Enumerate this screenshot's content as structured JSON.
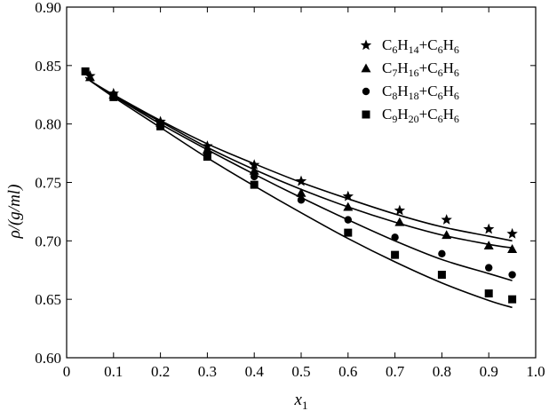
{
  "chart_data": {
    "type": "scatter",
    "title": "",
    "xlabel": "x",
    "xlabel_sub": "1",
    "ylabel": "ρ/(g/ml)",
    "xlim": [
      0,
      1.0
    ],
    "ylim": [
      0.6,
      0.9
    ],
    "x_ticks": [
      0,
      0.1,
      0.2,
      0.3,
      0.4,
      0.5,
      0.6,
      0.7,
      0.8,
      0.9,
      1.0
    ],
    "x_tick_labels": [
      "0",
      "0.1",
      "0.2",
      "0.3",
      "0.4",
      "0.5",
      "0.6",
      "0.7",
      "0.8",
      "0.9",
      "1.0"
    ],
    "y_ticks": [
      0.6,
      0.65,
      0.7,
      0.75,
      0.8,
      0.85,
      0.9
    ],
    "y_tick_labels": [
      "0.60",
      "0.65",
      "0.70",
      "0.75",
      "0.80",
      "0.85",
      "0.90"
    ],
    "grid": false,
    "legend_position": "top-right",
    "series": [
      {
        "name": "C6H14+C6H6",
        "marker": "star",
        "name_parts": [
          [
            "C",
            ""
          ],
          [
            "6",
            "sub"
          ],
          [
            "H",
            ""
          ],
          [
            "14",
            "sub"
          ],
          [
            "+C",
            ""
          ],
          [
            "6",
            "sub"
          ],
          [
            "H",
            ""
          ],
          [
            "6",
            "sub"
          ]
        ],
        "x": [
          0.05,
          0.1,
          0.2,
          0.3,
          0.4,
          0.5,
          0.6,
          0.71,
          0.81,
          0.9,
          0.95
        ],
        "y": [
          0.841,
          0.826,
          0.802,
          0.781,
          0.765,
          0.751,
          0.738,
          0.726,
          0.718,
          0.71,
          0.706
        ],
        "fit": [
          [
            0.05,
            0.837
          ],
          [
            0.1,
            0.825
          ],
          [
            0.2,
            0.803
          ],
          [
            0.3,
            0.783
          ],
          [
            0.4,
            0.766
          ],
          [
            0.5,
            0.75
          ],
          [
            0.6,
            0.736
          ],
          [
            0.7,
            0.723
          ],
          [
            0.8,
            0.712
          ],
          [
            0.9,
            0.704
          ],
          [
            0.95,
            0.7
          ]
        ]
      },
      {
        "name": "C7H16+C6H6",
        "marker": "triangle",
        "name_parts": [
          [
            "C",
            ""
          ],
          [
            "7",
            "sub"
          ],
          [
            "H",
            ""
          ],
          [
            "16",
            "sub"
          ],
          [
            "+C",
            ""
          ],
          [
            "6",
            "sub"
          ],
          [
            "H",
            ""
          ],
          [
            "6",
            "sub"
          ]
        ],
        "x": [
          0.05,
          0.1,
          0.2,
          0.3,
          0.4,
          0.5,
          0.6,
          0.71,
          0.81,
          0.9,
          0.95
        ],
        "y": [
          0.84,
          0.825,
          0.801,
          0.778,
          0.76,
          0.741,
          0.729,
          0.716,
          0.705,
          0.696,
          0.693
        ],
        "fit": [
          [
            0.05,
            0.837
          ],
          [
            0.1,
            0.824
          ],
          [
            0.2,
            0.802
          ],
          [
            0.3,
            0.78
          ],
          [
            0.4,
            0.761
          ],
          [
            0.5,
            0.744
          ],
          [
            0.6,
            0.729
          ],
          [
            0.7,
            0.716
          ],
          [
            0.8,
            0.705
          ],
          [
            0.9,
            0.697
          ],
          [
            0.95,
            0.694
          ]
        ]
      },
      {
        "name": "C8H18+C6H6",
        "marker": "circle",
        "name_parts": [
          [
            "C",
            ""
          ],
          [
            "8",
            "sub"
          ],
          [
            "H",
            ""
          ],
          [
            "18",
            "sub"
          ],
          [
            "+C",
            ""
          ],
          [
            "6",
            "sub"
          ],
          [
            "H",
            ""
          ],
          [
            "6",
            "sub"
          ]
        ],
        "x": [
          0.1,
          0.2,
          0.3,
          0.4,
          0.5,
          0.6,
          0.7,
          0.8,
          0.9,
          0.95
        ],
        "y": [
          0.825,
          0.8,
          0.776,
          0.755,
          0.735,
          0.718,
          0.703,
          0.689,
          0.677,
          0.671
        ],
        "fit": [
          [
            0.05,
            0.837
          ],
          [
            0.1,
            0.824
          ],
          [
            0.2,
            0.8
          ],
          [
            0.3,
            0.778
          ],
          [
            0.4,
            0.757
          ],
          [
            0.5,
            0.737
          ],
          [
            0.6,
            0.718
          ],
          [
            0.7,
            0.7
          ],
          [
            0.8,
            0.684
          ],
          [
            0.9,
            0.672
          ],
          [
            0.95,
            0.666
          ]
        ]
      },
      {
        "name": "C9H20+C6H6",
        "marker": "square",
        "name_parts": [
          [
            "C",
            ""
          ],
          [
            "9",
            "sub"
          ],
          [
            "H",
            ""
          ],
          [
            "20",
            "sub"
          ],
          [
            "+C",
            ""
          ],
          [
            "6",
            "sub"
          ],
          [
            "H",
            ""
          ],
          [
            "6",
            "sub"
          ]
        ],
        "x": [
          0.04,
          0.1,
          0.2,
          0.3,
          0.4,
          0.6,
          0.7,
          0.8,
          0.9,
          0.95
        ],
        "y": [
          0.845,
          0.823,
          0.798,
          0.772,
          0.748,
          0.707,
          0.688,
          0.671,
          0.655,
          0.65
        ],
        "fit": [
          [
            0.04,
            0.84
          ],
          [
            0.1,
            0.823
          ],
          [
            0.2,
            0.797
          ],
          [
            0.3,
            0.771
          ],
          [
            0.4,
            0.747
          ],
          [
            0.5,
            0.724
          ],
          [
            0.6,
            0.702
          ],
          [
            0.7,
            0.682
          ],
          [
            0.8,
            0.664
          ],
          [
            0.9,
            0.649
          ],
          [
            0.95,
            0.643
          ]
        ]
      }
    ]
  }
}
